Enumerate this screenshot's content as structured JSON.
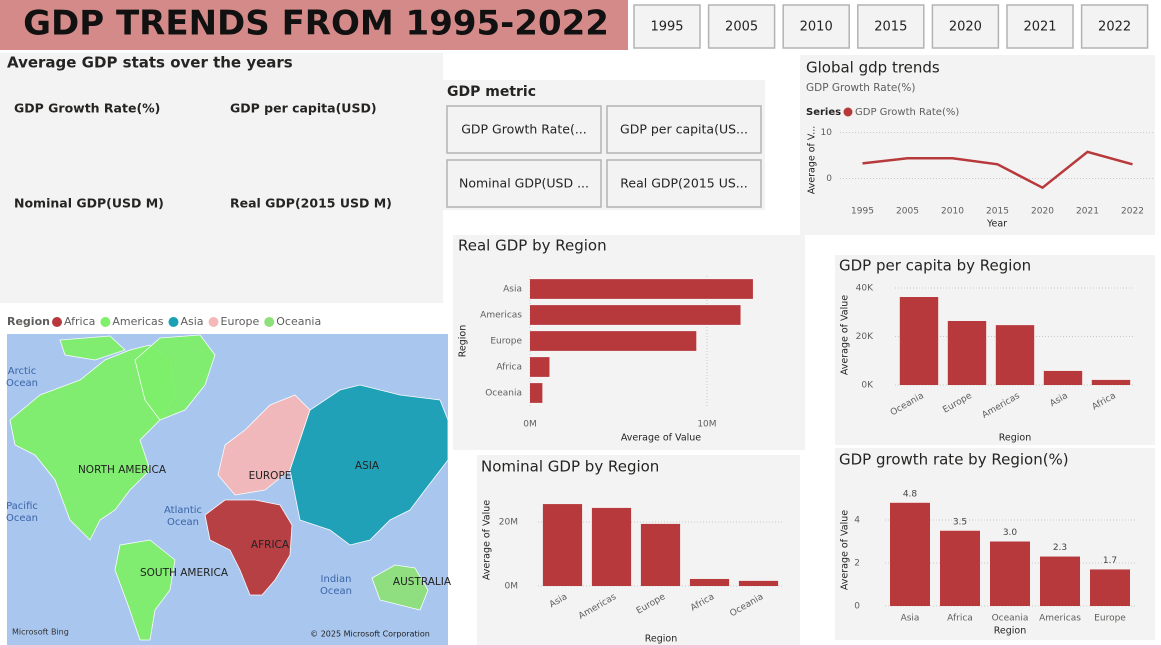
{
  "header": {
    "title": "GDP TRENDS FROM 1995-2022"
  },
  "year_slicer": [
    "1995",
    "2005",
    "2010",
    "2015",
    "2020",
    "2021",
    "2022"
  ],
  "stats_card": {
    "title": "Average GDP stats over the years",
    "labels": [
      "GDP Growth Rate(%)",
      "GDP per capita(USD)",
      "Nominal GDP(USD M)",
      "Real GDP(2015 USD M)"
    ]
  },
  "metric_slicer": {
    "title": "GDP metric",
    "options": [
      "GDP Growth Rate(...",
      "GDP per capita(US...",
      "Nominal GDP(USD ...",
      "Real GDP(2015 US..."
    ]
  },
  "map": {
    "legend_title": "Region",
    "legend": [
      {
        "name": "Africa",
        "color": "#b8393c"
      },
      {
        "name": "Americas",
        "color": "#7ef06a"
      },
      {
        "name": "Asia",
        "color": "#1aa0b5"
      },
      {
        "name": "Europe",
        "color": "#f4b8b8"
      },
      {
        "name": "Oceania",
        "color": "#8ee07a"
      }
    ],
    "continent_labels": [
      "NORTH AMERICA",
      "EUROPE",
      "ASIA",
      "AFRICA",
      "SOUTH AMERICA",
      "AUSTRALIA"
    ],
    "ocean_labels": [
      [
        "Arctic",
        "Ocean"
      ],
      [
        "Pacific",
        "Ocean"
      ],
      [
        "Atlantic",
        "Ocean"
      ],
      [
        "Indian",
        "Ocean"
      ]
    ],
    "attribution": "Microsoft Bing",
    "copyright": "© 2025 Microsoft Corporation"
  },
  "chart_data": [
    {
      "type": "line",
      "title": "Global gdp trends",
      "subtitle": "GDP Growth Rate(%)",
      "legend_title": "Series",
      "categories": [
        "1995",
        "2005",
        "2010",
        "2015",
        "2020",
        "2021",
        "2022"
      ],
      "series": [
        {
          "name": "GDP Growth Rate(%)",
          "color": "#b8393c",
          "values": [
            3.3,
            4.4,
            4.4,
            3.1,
            -2.0,
            5.8,
            3.1
          ]
        }
      ],
      "ylim": [
        -2.5,
        11
      ],
      "yticks": [
        0,
        10
      ],
      "xlabel": "Year",
      "ylabel": "Average of V...",
      "grid": true
    },
    {
      "type": "hbar",
      "title": "Real GDP by Region",
      "categories": [
        "Asia",
        "Americas",
        "Europe",
        "Africa",
        "Oceania"
      ],
      "values": [
        12600000,
        11900000,
        9400000,
        1100000,
        700000
      ],
      "color": "#b8393c",
      "xlim": [
        0,
        13000000
      ],
      "xticks": [
        {
          "value": 0,
          "label": "0M"
        },
        {
          "value": 10000000,
          "label": "10M"
        }
      ],
      "xlabel": "Average of Value",
      "ylabel": "Region",
      "grid": true
    },
    {
      "type": "bar",
      "title": "GDP per capita by Region",
      "categories": [
        "Oceania",
        "Europe",
        "Americas",
        "Asia",
        "Africa"
      ],
      "values": [
        36300,
        26400,
        24700,
        5800,
        2100
      ],
      "color": "#b8393c",
      "ylim": [
        0,
        42000
      ],
      "yticks": [
        {
          "value": 0,
          "label": "0K"
        },
        {
          "value": 20000,
          "label": "20K"
        },
        {
          "value": 40000,
          "label": "40K"
        }
      ],
      "xlabel": "Region",
      "ylabel": "Average of Value",
      "grid": true,
      "rotate_labels": true
    },
    {
      "type": "bar",
      "title": "Nominal GDP by Region",
      "categories": [
        "Asia",
        "Americas",
        "Europe",
        "Africa",
        "Oceania"
      ],
      "values": [
        25600000,
        24400000,
        19400000,
        2200000,
        1600000
      ],
      "color": "#b8393c",
      "ylim": [
        0,
        28000000
      ],
      "yticks": [
        {
          "value": 0,
          "label": "0M"
        },
        {
          "value": 20000000,
          "label": "20M"
        }
      ],
      "xlabel": "Region",
      "ylabel": "Average of Value",
      "grid": true,
      "rotate_labels": true
    },
    {
      "type": "bar",
      "title": "GDP growth rate by Region(%)",
      "categories": [
        "Asia",
        "Africa",
        "Oceania",
        "Americas",
        "Europe"
      ],
      "values": [
        4.8,
        3.5,
        3.0,
        2.3,
        1.7
      ],
      "value_labels": [
        "4.8",
        "3.5",
        "3.0",
        "2.3",
        "1.7"
      ],
      "color": "#b8393c",
      "ylim": [
        0,
        5.2
      ],
      "yticks": [
        0,
        2,
        4
      ],
      "xlabel": "Region",
      "ylabel": "Average of Value",
      "grid": true,
      "rotate_labels": false
    }
  ]
}
